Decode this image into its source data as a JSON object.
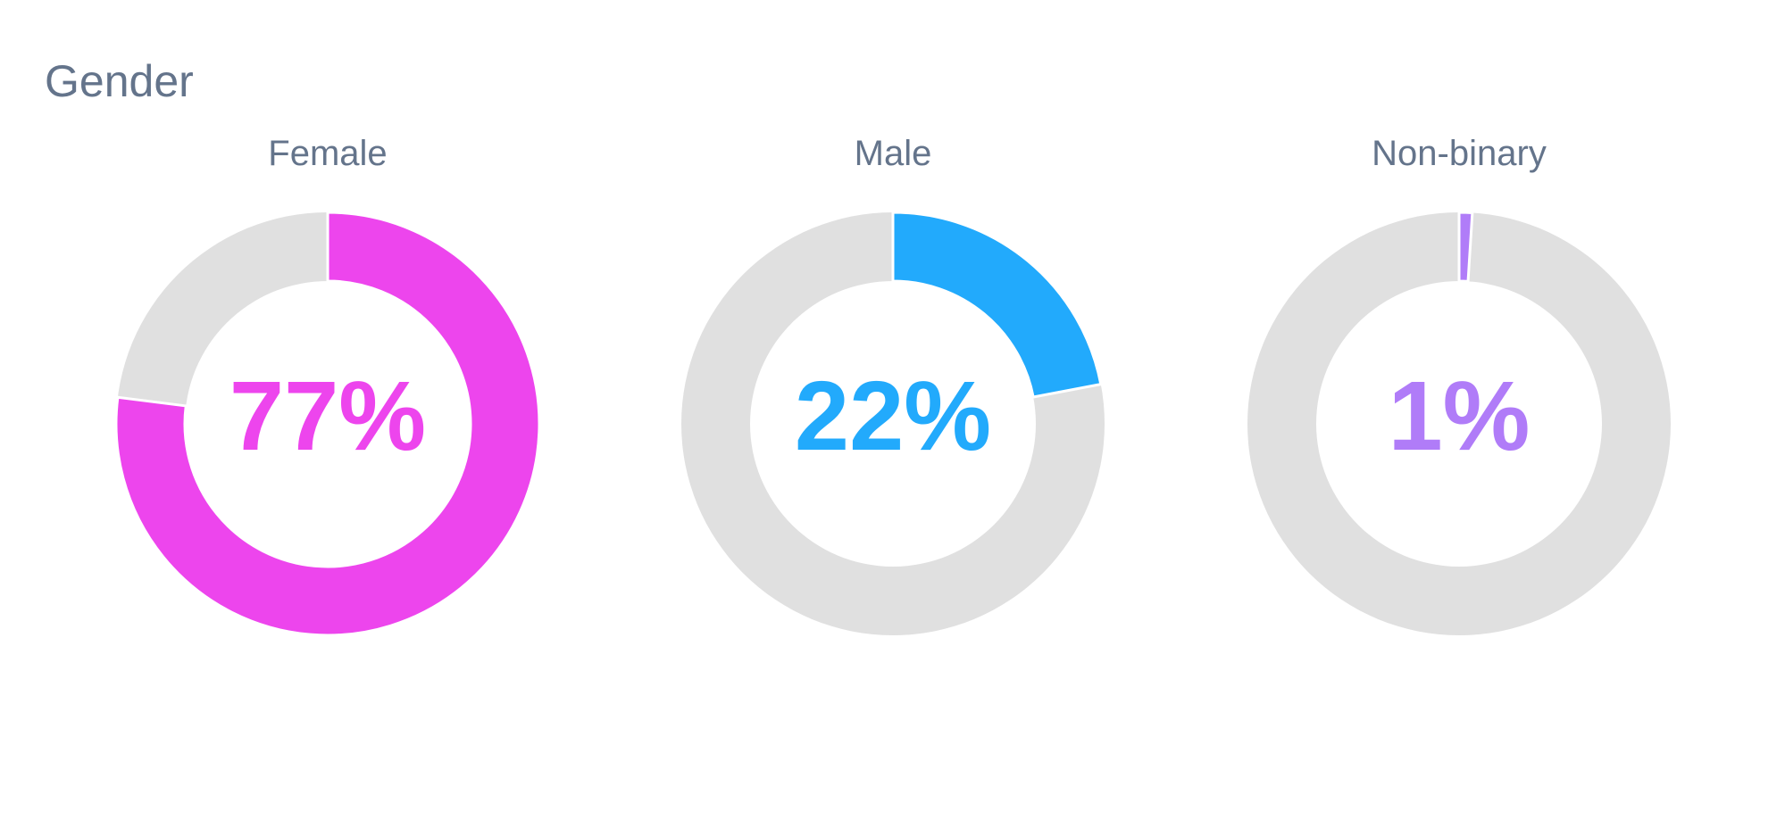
{
  "section": {
    "title": "Gender"
  },
  "colors": {
    "track": "#e0e0e0",
    "female": "#ed45ed",
    "male": "#22aafc",
    "non_binary": "#b07cf8",
    "label": "#64748b"
  },
  "chart_data": [
    {
      "type": "pie",
      "title": "Female",
      "value_percent": 77,
      "value_label": "77%",
      "color": "#ed45ed"
    },
    {
      "type": "pie",
      "title": "Male",
      "value_percent": 22,
      "value_label": "22%",
      "color": "#22aafc"
    },
    {
      "type": "pie",
      "title": "Non-binary",
      "value_percent": 1,
      "value_label": "1%",
      "color": "#b07cf8"
    }
  ]
}
